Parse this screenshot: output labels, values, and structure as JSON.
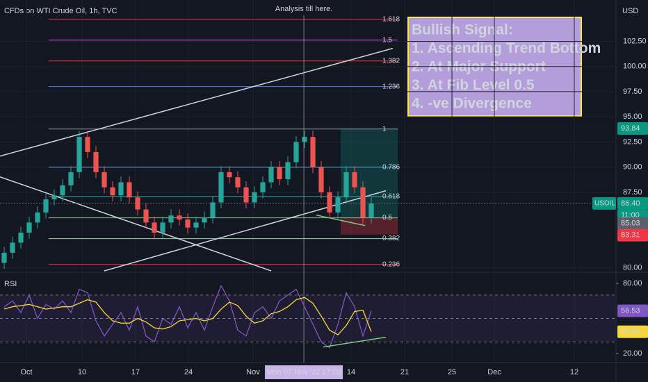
{
  "header": "CFDs on WTI Crude Oil, 1h, TVC",
  "currency": "USD",
  "symbol": "USOIL",
  "countdown": "11:00",
  "crosshair_label": "Mon 07 Nov '22  17:00",
  "annotation": "Analysis till here.",
  "note": {
    "lines": [
      "Bullish Signal:",
      "1. Ascending Trend Bottom",
      "2. At Major Support",
      "3. At Fib Level 0.5",
      "4. -ve Divergence"
    ]
  },
  "chart_data": [
    {
      "type": "candlestick",
      "xlim": [
        -0.5,
        73.25
      ],
      "ylim": [
        79.7,
        106.6
      ],
      "up_color": "#26a69a",
      "down_color": "#ef5350",
      "yticks": [
        {
          "value": 80,
          "label": "80.00"
        },
        {
          "value": 87.5,
          "label": "87.50"
        },
        {
          "value": 90,
          "label": "90.00"
        },
        {
          "value": 92.5,
          "label": "92.50"
        },
        {
          "value": 95,
          "label": "95.00"
        },
        {
          "value": 97.5,
          "label": "97.50"
        },
        {
          "value": 100,
          "label": "100.00"
        },
        {
          "value": 102.5,
          "label": "102.50"
        }
      ],
      "xticks": [
        {
          "value": 2.67,
          "label": "Oct"
        },
        {
          "value": 9.33,
          "label": "10"
        },
        {
          "value": 15.75,
          "label": "17"
        },
        {
          "value": 22.08,
          "label": "24"
        },
        {
          "value": 29.83,
          "label": "Nov"
        },
        {
          "value": 41.58,
          "label": "14"
        },
        {
          "value": 48,
          "label": "21"
        },
        {
          "value": 53.67,
          "label": "25"
        },
        {
          "value": 58.75,
          "label": "Dec"
        },
        {
          "value": 68.33,
          "label": "12"
        }
      ],
      "crosshair_x": 35.92,
      "open": [
        80.5,
        81.5,
        82.5,
        83.5,
        84.5,
        85.5,
        86.8,
        87.2,
        88.2,
        89.5,
        93.0,
        91.5,
        89.5,
        88.0,
        87.2,
        88.5,
        87.0,
        85.8,
        84.5,
        83.5,
        84.5,
        85.2,
        84.8,
        84.0,
        84.5,
        85.0,
        86.5,
        89.5,
        89.0,
        88.0,
        86.5,
        87.5,
        88.5,
        90.0,
        88.8,
        90.5,
        92.5,
        93.0,
        90.0,
        87.5,
        85.5,
        87.0,
        89.5,
        88.0,
        85.0
      ],
      "high": [
        82.1,
        83.1,
        84.1,
        85.1,
        86.1,
        87.4,
        87.8,
        88.8,
        90.1,
        93.6,
        93.6,
        92.1,
        90.1,
        88.6,
        89.1,
        89.1,
        87.6,
        86.4,
        85.1,
        85.1,
        85.8,
        85.8,
        85.4,
        85.1,
        85.6,
        87.1,
        90.1,
        90.1,
        89.6,
        88.6,
        88.1,
        89.1,
        90.6,
        90.6,
        91.1,
        93.1,
        93.6,
        93.6,
        90.6,
        88.1,
        87.6,
        90.1,
        90.1,
        88.6,
        87.0
      ],
      "low": [
        79.9,
        80.9,
        81.9,
        82.9,
        83.9,
        84.9,
        86.2,
        86.6,
        87.6,
        88.9,
        90.9,
        88.9,
        87.4,
        86.6,
        86.6,
        86.4,
        85.2,
        83.9,
        82.9,
        82.9,
        83.9,
        84.2,
        83.4,
        83.4,
        83.9,
        84.4,
        85.9,
        88.4,
        87.4,
        85.9,
        85.9,
        86.9,
        87.9,
        88.2,
        88.2,
        89.9,
        91.9,
        89.4,
        86.9,
        84.9,
        84.9,
        86.4,
        87.4,
        84.4,
        84.4
      ],
      "close": [
        81.5,
        82.5,
        83.5,
        84.5,
        85.5,
        86.8,
        87.2,
        88.2,
        89.5,
        93.0,
        91.5,
        89.5,
        88.0,
        87.2,
        88.5,
        87.0,
        85.8,
        84.5,
        83.5,
        84.5,
        85.2,
        84.8,
        84.0,
        84.5,
        85.0,
        86.5,
        89.5,
        89.0,
        88.0,
        86.5,
        87.5,
        88.5,
        90.0,
        88.8,
        90.5,
        92.5,
        93.0,
        90.0,
        87.5,
        85.5,
        87.0,
        89.5,
        88.0,
        85.0,
        86.4
      ],
      "fib_x": [
        5.33,
        47.17
      ],
      "fib_levels": [
        {
          "level": 1.618,
          "price": 104.69,
          "color": "#f23645"
        },
        {
          "level": 1.5,
          "price": 102.62,
          "color": "#e040fb"
        },
        {
          "level": 1.382,
          "price": 100.55,
          "color": "#f23645"
        },
        {
          "level": 1.236,
          "price": 98.0,
          "color": "#5b7cfa"
        },
        {
          "level": 1,
          "price": 93.79,
          "color": "#9598a1"
        },
        {
          "level": 0.786,
          "price": 90.0,
          "color": "#64b5f6"
        },
        {
          "level": 0.618,
          "price": 87.1,
          "color": "#26a69a"
        },
        {
          "level": 0.5,
          "price": 84.97,
          "color": "#81c784"
        },
        {
          "level": 0.382,
          "price": 82.9,
          "color": "#a5d6a7"
        },
        {
          "level": 0.236,
          "price": 80.34,
          "color": "#f23645"
        }
      ],
      "trendlines": [
        {
          "x": [
            -0.5,
            46.58
          ],
          "y": [
            91.1,
            101.8
          ]
        },
        {
          "x": [
            -0.5,
            32
          ],
          "y": [
            89.03,
            79.7
          ]
        },
        {
          "x": [
            12,
            45.75
          ],
          "y": [
            79.7,
            87.66
          ]
        },
        {
          "x": [
            37.4,
            43.25
          ],
          "y": [
            85.24,
            84.2
          ]
        }
      ],
      "position": {
        "x": [
          40.33,
          47.17
        ],
        "target": 93.84,
        "entry": 85.03,
        "stop": 83.31
      },
      "last_price": 86.4,
      "last_price_label": "86.40",
      "target_label": "93.84",
      "entry_label": "85.03",
      "stop_label": "83.31"
    },
    {
      "type": "rsi",
      "name": "RSI",
      "ylim": [
        13.5,
        89.5
      ],
      "band": [
        30,
        70
      ],
      "mid": 50,
      "yticks": [
        {
          "value": 20,
          "label": "20.00"
        },
        {
          "value": 80,
          "label": "80.00"
        }
      ],
      "series": [
        {
          "color": "#7e57c2",
          "values": [
            60,
            65,
            55,
            70,
            50,
            62,
            58,
            65,
            55,
            75,
            72,
            48,
            35,
            45,
            55,
            40,
            60,
            35,
            30,
            50,
            45,
            60,
            42,
            55,
            40,
            60,
            78,
            65,
            40,
            35,
            55,
            60,
            50,
            65,
            70,
            75,
            60,
            45,
            30,
            25,
            45,
            72,
            60,
            35,
            56.53
          ],
          "value_label": "56.53"
        },
        {
          "color": "#f7d83b",
          "values": [
            58,
            60,
            61,
            62,
            60,
            58,
            59,
            60,
            60,
            63,
            66,
            64,
            55,
            48,
            46,
            46,
            50,
            47,
            42,
            41,
            43,
            48,
            49,
            50,
            48,
            50,
            58,
            64,
            61,
            52,
            46,
            48,
            54,
            56,
            60,
            66,
            68,
            63,
            52,
            40,
            36,
            44,
            56,
            57,
            38.66
          ],
          "value_label": "38.66"
        }
      ],
      "divergence": {
        "x": [
          38.25,
          45.75
        ],
        "y": [
          25.6,
          34
        ]
      }
    }
  ]
}
